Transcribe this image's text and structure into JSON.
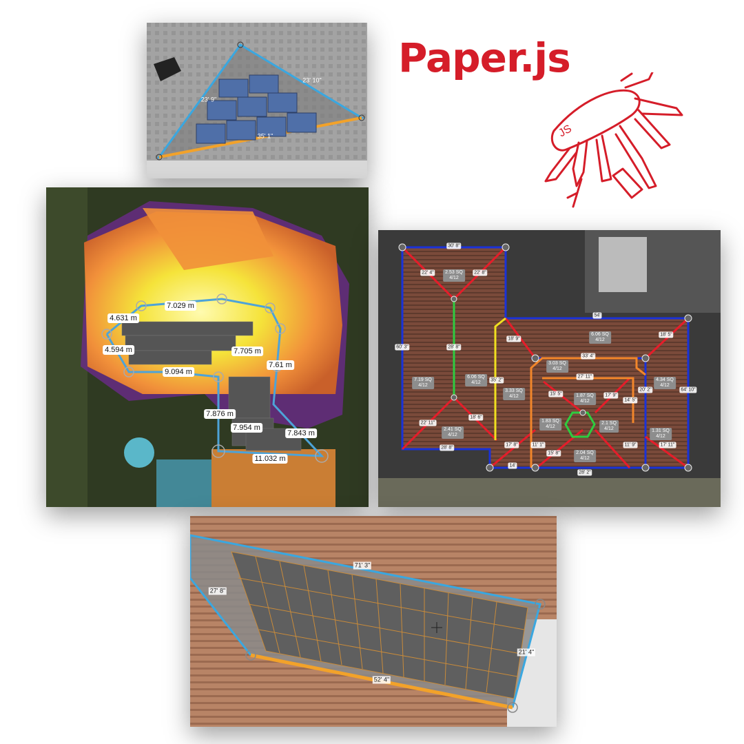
{
  "brand": {
    "name": "Paper.js",
    "color": "#d51d29"
  },
  "panels": {
    "triangle_roof": {
      "measurements": [
        "23' 9\"",
        "23' 10\"",
        "35' 1\""
      ],
      "colors": {
        "edge": "#3aa7e0",
        "base": "#f2a22a",
        "panel": "#4f6fa8"
      }
    },
    "heatmap_roof": {
      "measurements": [
        "7.029 m",
        "4.631 m",
        "4.594 m",
        "9.094 m",
        "7.705 m",
        "7.61 m",
        "7.876 m",
        "7.954 m",
        "7.843 m",
        "11.032 m"
      ],
      "colors": {
        "outline": "#4da3d8",
        "hot": "#f1903a",
        "warm": "#f5e33a",
        "cool": "#6a2a8a"
      }
    },
    "roof_plan": {
      "edges": [
        "30' 8\"",
        "22' 4\"",
        "22' 8\"",
        "60' 3\"",
        "28' 8\"",
        "35' 2\"",
        "22' 11\"",
        "18' 6\"",
        "28' 8\"",
        "18' 9\"",
        "54'",
        "18' 5\"",
        "33' 4\"",
        "27' 11\"",
        "20' 2\"",
        "64' 10\"",
        "15' 5\"",
        "14' 5\"",
        "17' 9\"",
        "17' 8\"",
        "11' 1\"",
        "15' 8\"",
        "14'",
        "28' 2\"",
        "17' 11\"",
        "11' 9\""
      ],
      "areas": [
        {
          "sq": "2.53 SQ",
          "pitch": "4/12"
        },
        {
          "sq": "7.19 SQ",
          "pitch": "4/12"
        },
        {
          "sq": "6.06 SQ",
          "pitch": "4/12"
        },
        {
          "sq": "3.33 SQ",
          "pitch": "4/12"
        },
        {
          "sq": "2.41 SQ",
          "pitch": "4/12"
        },
        {
          "sq": "3.03 SQ",
          "pitch": "4/12"
        },
        {
          "sq": "6.06 SQ",
          "pitch": "4/12"
        },
        {
          "sq": "4.34 SQ",
          "pitch": "4/12"
        },
        {
          "sq": "1.87 SQ",
          "pitch": "4/12"
        },
        {
          "sq": "1.83 SQ",
          "pitch": "4/12"
        },
        {
          "sq": "2.1 SQ",
          "pitch": "4/12"
        },
        {
          "sq": "2.04 SQ",
          "pitch": "4/12"
        },
        {
          "sq": "1.31 SQ",
          "pitch": "4/12"
        }
      ],
      "colors": {
        "perimeter": "#1a32d8",
        "hip": "#e51d2a",
        "ridge": "#2ecc40",
        "valley": "#f0e020",
        "step": "#f2862a"
      }
    },
    "panel_array": {
      "measurements": [
        "71' 3\"",
        "27' 8\"",
        "21' 4\"",
        "52' 4\""
      ],
      "colors": {
        "edge": "#3aa7e0",
        "base": "#f2a22a",
        "cell": "#5f5f5f",
        "grid": "#c98b3a"
      }
    }
  }
}
